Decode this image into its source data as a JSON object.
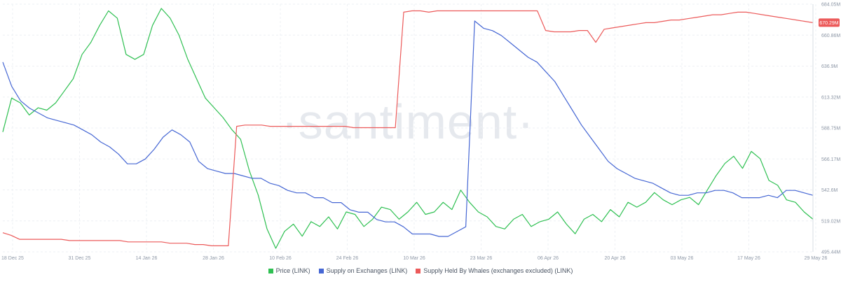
{
  "watermark": "·santiment·",
  "chart_data": {
    "type": "line",
    "x_ticks": [
      "18 Dec 25",
      "31 Dec 25",
      "14 Jan 26",
      "28 Jan 26",
      "10 Feb 26",
      "24 Feb 26",
      "10 Mar 26",
      "23 Mar 26",
      "06 Apr 26",
      "20 Apr 26",
      "03 May 26",
      "17 May 26",
      "29 May 26"
    ],
    "y_ticks_right": [
      "684.05M",
      "660.86M",
      "636.9M",
      "613.32M",
      "588.75M",
      "566.17M",
      "542.6M",
      "519.02M",
      "495.44M"
    ],
    "y_right_range": [
      495.44,
      684.05
    ],
    "current_value_label": "670.29M",
    "legend_position": "bottom-center",
    "grid": true,
    "series": [
      {
        "name": "Price (LINK)",
        "color": "#2fc052",
        "scale": "hidden",
        "values": [
          48,
          62,
          60,
          55,
          58,
          57,
          60,
          65,
          70,
          80,
          85,
          92,
          98,
          95,
          80,
          78,
          80,
          92,
          99,
          95,
          88,
          78,
          70,
          62,
          58,
          54,
          49,
          45,
          32,
          22,
          8,
          0,
          7,
          10,
          5,
          11,
          9,
          13,
          8,
          15,
          14,
          9,
          12,
          17,
          16,
          12,
          15,
          19,
          14,
          15,
          19,
          16,
          24,
          19,
          15,
          13,
          9,
          8,
          12,
          14,
          9,
          11,
          12,
          15,
          10,
          6,
          12,
          14,
          11,
          16,
          13,
          19,
          17,
          19,
          23,
          20,
          18,
          20,
          21,
          18,
          24,
          30,
          35,
          38,
          33,
          40,
          37,
          28,
          26,
          20,
          19,
          15,
          12
        ]
      },
      {
        "name": "Supply on Exchanges (LINK)",
        "color": "#4667d4",
        "scale": "hidden",
        "values": [
          78,
          68,
          62,
          59,
          57,
          55,
          54,
          53,
          52,
          50,
          48,
          45,
          43,
          40,
          36,
          36,
          38,
          42,
          47,
          50,
          48,
          45,
          37,
          34,
          33,
          32,
          32,
          31,
          30,
          30,
          28,
          27,
          25,
          24,
          24,
          22,
          22,
          20,
          20,
          17,
          16,
          16,
          13,
          12,
          12,
          10,
          7,
          7,
          7,
          6,
          6,
          8,
          10,
          95,
          92,
          91,
          89,
          86,
          83,
          80,
          78,
          74,
          70,
          64,
          58,
          52,
          47,
          42,
          37,
          34,
          32,
          30,
          29,
          28,
          26,
          24,
          23,
          23,
          24,
          24,
          25,
          25,
          24,
          22,
          22,
          22,
          23,
          22,
          25,
          25,
          24,
          23
        ]
      },
      {
        "name": "Supply Held By Whales (exchanges excluded) (LINK)",
        "color": "#ec5a5a",
        "scale": "right",
        "values": [
          510,
          508,
          505,
          505,
          505,
          505,
          505,
          505,
          504,
          504,
          504,
          504,
          504,
          504,
          504,
          503,
          503,
          503,
          503,
          503,
          502,
          502,
          502,
          501,
          501,
          500,
          500,
          500,
          591,
          592,
          592,
          592,
          591,
          591,
          591,
          591,
          591,
          591,
          591,
          591,
          591,
          591,
          590,
          590,
          590,
          590,
          590,
          590,
          678,
          679,
          679,
          678,
          679,
          679,
          679,
          679,
          679,
          679,
          679,
          679,
          679,
          679,
          679,
          679,
          679,
          664,
          663,
          663,
          663,
          664,
          664,
          655,
          665,
          666,
          667,
          668,
          669,
          670,
          670,
          671,
          672,
          672,
          673,
          674,
          675,
          676,
          676,
          677,
          678,
          678,
          677,
          676,
          675,
          674,
          673,
          672,
          671,
          670
        ]
      }
    ]
  }
}
